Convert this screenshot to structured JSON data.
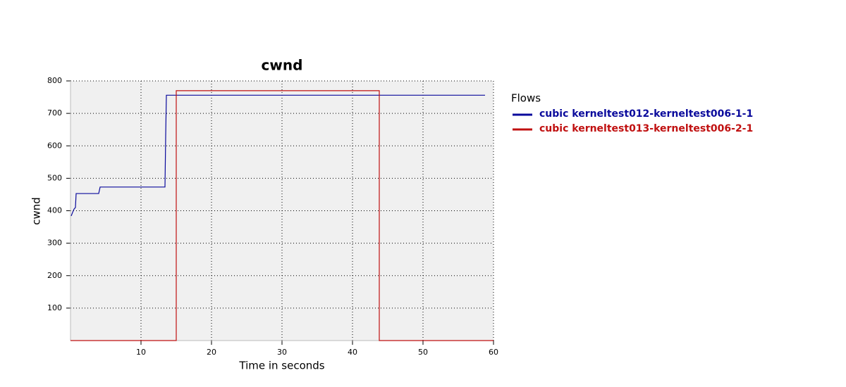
{
  "chart_data": {
    "type": "line",
    "title": "cwnd",
    "xlabel": "Time in seconds",
    "ylabel": "cwnd",
    "xlim": [
      0,
      60
    ],
    "ylim": [
      0,
      800
    ],
    "xticks": [
      10,
      20,
      30,
      40,
      50,
      60
    ],
    "yticks": [
      100,
      200,
      300,
      400,
      500,
      600,
      700,
      800
    ],
    "grid": true,
    "legend": "right",
    "legend_title": "Flows",
    "series": [
      {
        "name": "cubic kerneltest012-kerneltest006-1-1",
        "color": "#0a0a9c",
        "x": [
          0.1,
          0.3,
          0.5,
          0.7,
          0.8,
          4.0,
          4.2,
          13.4,
          13.5,
          13.6,
          58.8
        ],
        "values": [
          384,
          395,
          405,
          410,
          453,
          453,
          473,
          473,
          630,
          756,
          756
        ]
      },
      {
        "name": "cubic kerneltest013-kerneltest006-2-1",
        "color": "#c01010",
        "x": [
          0,
          15,
          15,
          43.8,
          43.8,
          60
        ],
        "values": [
          0,
          0,
          770,
          770,
          0,
          0
        ]
      }
    ]
  }
}
